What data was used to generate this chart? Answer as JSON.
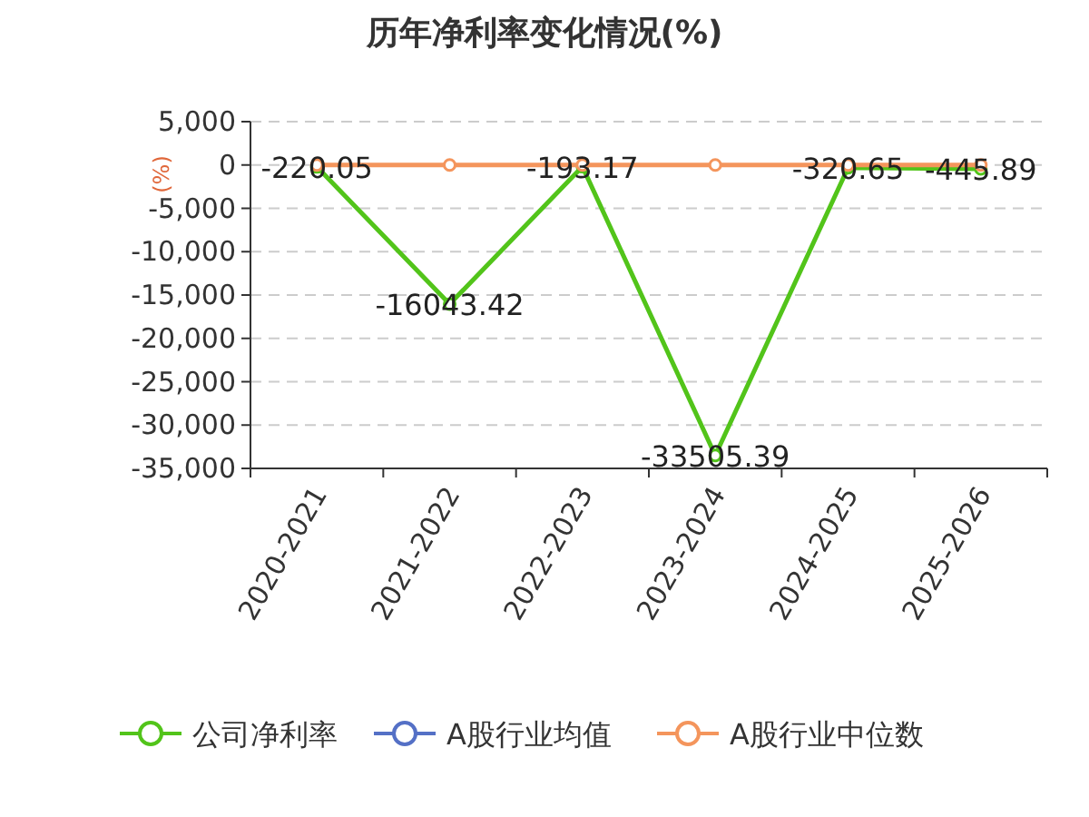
{
  "chart_data": {
    "type": "line",
    "title": "历年净利率变化情况(%)",
    "ylabel": "(%)",
    "categories": [
      "2020-2021",
      "2021-2022",
      "2022-2023",
      "2023-2024",
      "2024-2025",
      "2025-2026"
    ],
    "series": [
      {
        "name": "公司净利率",
        "color": "#52c41a",
        "values": [
          -220.05,
          -16043.42,
          -193.17,
          -33505.39,
          -320.65,
          -445.89
        ],
        "value_labels": [
          "-220.05",
          "-16043.42",
          "-193.17",
          "-33505.39",
          "-320.65",
          "-445.89"
        ]
      },
      {
        "name": "A股行业均值",
        "color": "#5470c6",
        "values": [
          null,
          null,
          null,
          null,
          null,
          null
        ]
      },
      {
        "name": "A股行业中位数",
        "color": "#f4955c",
        "values": [
          0,
          0,
          0,
          0,
          0,
          0
        ]
      }
    ],
    "ylim": [
      -35000,
      5000
    ],
    "yticks": [
      {
        "value": 5000,
        "label": "5,000"
      },
      0,
      {
        "value": -5000,
        "label": "-5,000"
      },
      {
        "value": -10000,
        "label": "-10,000"
      },
      {
        "value": -15000,
        "label": "-15,000"
      },
      {
        "value": -20000,
        "label": "-20,000"
      },
      {
        "value": -25000,
        "label": "-25,000"
      },
      {
        "value": -30000,
        "label": "-30,000"
      },
      {
        "value": -35000,
        "label": "-35,000"
      }
    ],
    "grid": "y",
    "legend": "bottom",
    "marker": "circle",
    "line_style": "solid"
  }
}
